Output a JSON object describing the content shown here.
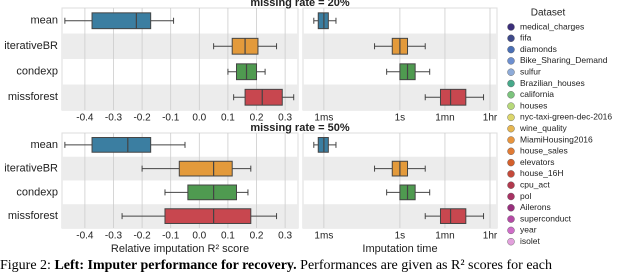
{
  "chart_data": [
    {
      "type": "box",
      "title": "missing rate = 20%",
      "categories": [
        "mean",
        "iterativeBR",
        "condexp",
        "missforest"
      ],
      "colors": [
        "#3b7ea1",
        "#e39a3b",
        "#4f9a50",
        "#c8474f"
      ],
      "xlim": [
        -0.48,
        0.345
      ],
      "xticks": [
        -0.4,
        -0.3,
        -0.2,
        -0.1,
        {
          "value": 0,
          "label": "0.0"
        },
        0.1,
        0.2,
        0.3
      ],
      "grid": true,
      "boxes": [
        {
          "whisker_low": -0.47,
          "q1": -0.375,
          "median": -0.22,
          "q3": -0.17,
          "whisker_high": -0.09
        },
        {
          "whisker_low": 0.05,
          "q1": 0.115,
          "median": 0.16,
          "q3": 0.205,
          "whisker_high": 0.27
        },
        {
          "whisker_low": 0.1,
          "q1": 0.13,
          "median": 0.165,
          "q3": 0.2,
          "whisker_high": 0.23
        },
        {
          "whisker_low": 0.12,
          "q1": 0.16,
          "median": 0.22,
          "q3": 0.29,
          "whisker_high": 0.33
        }
      ]
    },
    {
      "type": "box",
      "colors": [
        "#3b7ea1",
        "#e39a3b",
        "#4f9a50",
        "#c8474f"
      ],
      "xscale": "log",
      "xlim": [
        0.00015,
        6800
      ],
      "xticks": [
        {
          "value": 0.001,
          "label": "1ms"
        },
        {
          "value": 1,
          "label": "1s"
        },
        {
          "value": 60,
          "label": "1mn"
        },
        {
          "value": 3600,
          "label": "1hr"
        }
      ],
      "grid": true,
      "boxes": [
        {
          "whisker_low": 0.0004,
          "q1": 0.0006,
          "median": 0.001,
          "q3": 0.0015,
          "whisker_high": 0.003
        },
        {
          "whisker_low": 0.1,
          "q1": 0.5,
          "median": 1,
          "q3": 2,
          "whisker_high": 10
        },
        {
          "whisker_low": 0.3,
          "q1": 1,
          "median": 2,
          "q3": 4,
          "whisker_high": 15
        },
        {
          "whisker_low": 10,
          "q1": 40,
          "median": 100,
          "q3": 400,
          "whisker_high": 2000
        }
      ]
    },
    {
      "type": "box",
      "title": "missing rate = 50%",
      "categories": [
        "mean",
        "iterativeBR",
        "condexp",
        "missforest"
      ],
      "colors": [
        "#3b7ea1",
        "#e39a3b",
        "#4f9a50",
        "#c8474f"
      ],
      "xlabel": "Relative imputation R² score",
      "xlim": [
        -0.48,
        0.345
      ],
      "xticks": [
        -0.4,
        -0.3,
        -0.2,
        -0.1,
        {
          "value": 0,
          "label": "0.0"
        },
        0.1,
        0.2,
        0.3
      ],
      "grid": true,
      "boxes": [
        {
          "whisker_low": -0.47,
          "q1": -0.375,
          "median": -0.25,
          "q3": -0.17,
          "whisker_high": -0.05
        },
        {
          "whisker_low": -0.2,
          "q1": -0.07,
          "median": 0.05,
          "q3": 0.115,
          "whisker_high": 0.18
        },
        {
          "whisker_low": -0.12,
          "q1": -0.04,
          "median": 0.05,
          "q3": 0.13,
          "whisker_high": 0.17
        },
        {
          "whisker_low": -0.27,
          "q1": -0.12,
          "median": 0.05,
          "q3": 0.18,
          "whisker_high": 0.27
        }
      ]
    },
    {
      "type": "box",
      "colors": [
        "#3b7ea1",
        "#e39a3b",
        "#4f9a50",
        "#c8474f"
      ],
      "xscale": "log",
      "xlabel": "Imputation time",
      "xlim": [
        0.00015,
        6800
      ],
      "xticks": [
        {
          "value": 0.001,
          "label": "1ms"
        },
        {
          "value": 1,
          "label": "1s"
        },
        {
          "value": 60,
          "label": "1mn"
        },
        {
          "value": 3600,
          "label": "1hr"
        }
      ],
      "grid": true,
      "boxes": [
        {
          "whisker_low": 0.0004,
          "q1": 0.0006,
          "median": 0.001,
          "q3": 0.0015,
          "whisker_high": 0.003
        },
        {
          "whisker_low": 0.1,
          "q1": 0.5,
          "median": 1,
          "q3": 2,
          "whisker_high": 10
        },
        {
          "whisker_low": 0.3,
          "q1": 1,
          "median": 2,
          "q3": 4,
          "whisker_high": 15
        },
        {
          "whisker_low": 10,
          "q1": 40,
          "median": 100,
          "q3": 400,
          "whisker_high": 2000
        }
      ]
    }
  ],
  "legend": {
    "title": "Dataset",
    "items": [
      {
        "name": "medical_charges",
        "color": "#3b2f7a"
      },
      {
        "name": "fifa",
        "color": "#3f4a8a"
      },
      {
        "name": "diamonds",
        "color": "#4a6fb5"
      },
      {
        "name": "Bike_Sharing_Demand",
        "color": "#6d8fd0"
      },
      {
        "name": "sulfur",
        "color": "#8eabd8"
      },
      {
        "name": "Brazilian_houses",
        "color": "#47a98a"
      },
      {
        "name": "california",
        "color": "#7cc47d"
      },
      {
        "name": "houses",
        "color": "#b7d97a"
      },
      {
        "name": "nyc-taxi-green-dec-2016",
        "color": "#dcd66b"
      },
      {
        "name": "wine_quality",
        "color": "#e6b650"
      },
      {
        "name": "MiamiHousing2016",
        "color": "#e8953e"
      },
      {
        "name": "house_sales",
        "color": "#e07b35"
      },
      {
        "name": "elevators",
        "color": "#d4602c"
      },
      {
        "name": "house_16H",
        "color": "#c54a3a"
      },
      {
        "name": "cpu_act",
        "color": "#b23a4e"
      },
      {
        "name": "pol",
        "color": "#a83263"
      },
      {
        "name": "Ailerons",
        "color": "#98307d"
      },
      {
        "name": "superconduct",
        "color": "#b54aa5"
      },
      {
        "name": "year",
        "color": "#cf6cc8"
      },
      {
        "name": "isolet",
        "color": "#e2a0dc"
      }
    ]
  },
  "caption": {
    "label": "Figure 2:",
    "bold": "Left: Imputer performance for recovery.",
    "text": "Performances are given as R² scores for each"
  }
}
